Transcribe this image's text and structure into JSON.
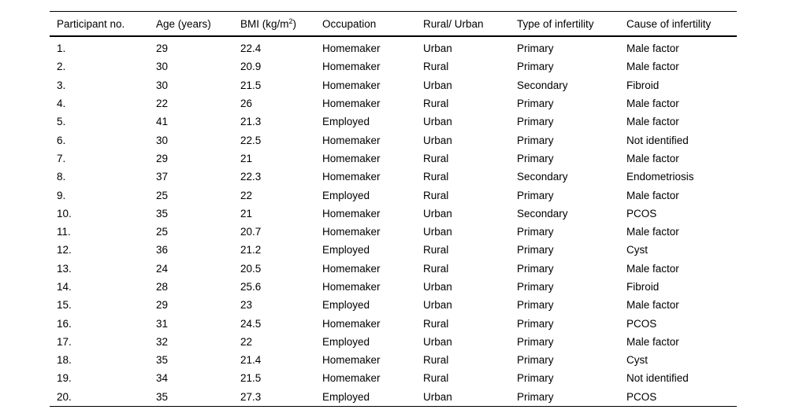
{
  "page": {
    "background_color": "#ffffff",
    "text_color": "#000000",
    "rule_color": "#000000"
  },
  "table": {
    "columns": [
      {
        "key": "participant-no",
        "label": "Participant no."
      },
      {
        "key": "age",
        "label": "Age (years)"
      },
      {
        "key": "bmi",
        "label_pre": "BMI (kg/m",
        "label_sup": "2",
        "label_post": ")"
      },
      {
        "key": "occupation",
        "label": "Occupation"
      },
      {
        "key": "rural-urban",
        "label": "Rural/ Urban"
      },
      {
        "key": "infertility-type",
        "label": "Type of infertility"
      },
      {
        "key": "infertility-cause",
        "label": "Cause of infertility"
      }
    ],
    "rows": [
      [
        "1.",
        "29",
        "22.4",
        "Homemaker",
        "Urban",
        "Primary",
        "Male factor"
      ],
      [
        "2.",
        "30",
        "20.9",
        "Homemaker",
        "Rural",
        "Primary",
        "Male factor"
      ],
      [
        "3.",
        "30",
        "21.5",
        "Homemaker",
        "Urban",
        "Secondary",
        "Fibroid"
      ],
      [
        "4.",
        "22",
        "26",
        "Homemaker",
        "Rural",
        "Primary",
        "Male factor"
      ],
      [
        "5.",
        "41",
        "21.3",
        "Employed",
        "Urban",
        "Primary",
        "Male factor"
      ],
      [
        "6.",
        "30",
        "22.5",
        "Homemaker",
        "Urban",
        "Primary",
        "Not identified"
      ],
      [
        "7.",
        "29",
        "21",
        "Homemaker",
        "Rural",
        "Primary",
        "Male factor"
      ],
      [
        "8.",
        "37",
        "22.3",
        "Homemaker",
        "Rural",
        "Secondary",
        "Endometriosis"
      ],
      [
        "9.",
        "25",
        "22",
        "Employed",
        "Rural",
        "Primary",
        "Male factor"
      ],
      [
        "10.",
        "35",
        "21",
        "Homemaker",
        "Urban",
        "Secondary",
        "PCOS"
      ],
      [
        "11.",
        "25",
        "20.7",
        "Homemaker",
        "Urban",
        "Primary",
        "Male factor"
      ],
      [
        "12.",
        "36",
        "21.2",
        "Employed",
        "Rural",
        "Primary",
        "Cyst"
      ],
      [
        "13.",
        "24",
        "20.5",
        "Homemaker",
        "Rural",
        "Primary",
        "Male factor"
      ],
      [
        "14.",
        "28",
        "25.6",
        "Homemaker",
        "Urban",
        "Primary",
        "Fibroid"
      ],
      [
        "15.",
        "29",
        "23",
        "Employed",
        "Urban",
        "Primary",
        "Male factor"
      ],
      [
        "16.",
        "31",
        "24.5",
        "Homemaker",
        "Rural",
        "Primary",
        "PCOS"
      ],
      [
        "17.",
        "32",
        "22",
        "Employed",
        "Urban",
        "Primary",
        "Male factor"
      ],
      [
        "18.",
        "35",
        "21.4",
        "Homemaker",
        "Rural",
        "Primary",
        "Cyst"
      ],
      [
        "19.",
        "34",
        "21.5",
        "Homemaker",
        "Rural",
        "Primary",
        "Not identified"
      ],
      [
        "20.",
        "35",
        "27.3",
        "Employed",
        "Urban",
        "Primary",
        "PCOS"
      ]
    ]
  }
}
